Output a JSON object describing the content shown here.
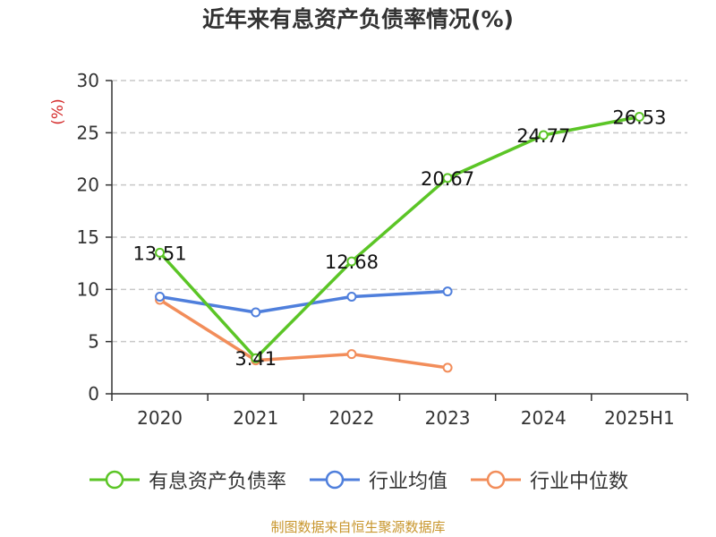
{
  "chart_data": {
    "type": "line",
    "title": "近年来有息资产负债率情况(%)",
    "ylabel": "(%)",
    "xlabel": "",
    "categories": [
      "2020",
      "2021",
      "2022",
      "2023",
      "2024",
      "2025H1"
    ],
    "ylim": [
      0,
      30
    ],
    "yticks": [
      0,
      5,
      10,
      15,
      20,
      25,
      30
    ],
    "grid": true,
    "legend_position": "bottom",
    "series": [
      {
        "name": "有息资产负债率",
        "color": "#5bc526",
        "values": [
          13.51,
          3.41,
          12.68,
          20.67,
          24.77,
          26.53
        ],
        "labels": [
          "13.51",
          "3.41",
          "12.68",
          "20.67",
          "24.77",
          "26.53"
        ]
      },
      {
        "name": "行业均值",
        "color": "#4f7fdc",
        "values": [
          9.3,
          7.8,
          9.3,
          9.8,
          null,
          null
        ]
      },
      {
        "name": "行业中位数",
        "color": "#f28d5a",
        "values": [
          9.0,
          3.2,
          3.8,
          2.5,
          null,
          null
        ]
      }
    ]
  },
  "source": "制图数据来自恒生聚源数据库"
}
